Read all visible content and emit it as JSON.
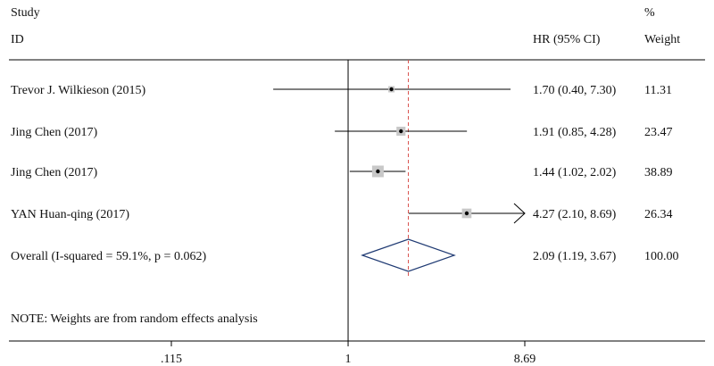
{
  "header": {
    "study_label": "Study",
    "id_label": "ID",
    "hr_label": "HR (95% CI)",
    "pct_label": "%",
    "weight_label": "Weight"
  },
  "note": "NOTE: Weights are from random effects analysis",
  "colors": {
    "line": "#000000",
    "weight_box": "#c8c8c8",
    "overall_diamond": "#1f3a73",
    "overall_ref_line": "#d9534f"
  },
  "chart_data": {
    "type": "forest",
    "scale": "log",
    "xlim": [
      0.115,
      8.69
    ],
    "x_ticks": [
      {
        "value": 0.115,
        "label": ".115"
      },
      {
        "value": 1,
        "label": "1"
      },
      {
        "value": 8.69,
        "label": "8.69"
      }
    ],
    "null_line": 1,
    "studies": [
      {
        "name": "Trevor J. Wilkieson (2015)",
        "hr": 1.7,
        "lo": 0.4,
        "hi": 7.3,
        "hr_ci_text": "1.70 (0.40, 7.30)",
        "weight": 11.31,
        "weight_text": "11.31",
        "arrow_right": false
      },
      {
        "name": "Jing Chen (2017)",
        "hr": 1.91,
        "lo": 0.85,
        "hi": 4.28,
        "hr_ci_text": "1.91 (0.85, 4.28)",
        "weight": 23.47,
        "weight_text": "23.47",
        "arrow_right": false
      },
      {
        "name": "Jing Chen (2017)",
        "hr": 1.44,
        "lo": 1.02,
        "hi": 2.02,
        "hr_ci_text": "1.44 (1.02, 2.02)",
        "weight": 38.89,
        "weight_text": "38.89",
        "arrow_right": false
      },
      {
        "name": "YAN Huan-qing (2017)",
        "hr": 4.27,
        "lo": 2.1,
        "hi": 8.69,
        "hr_ci_text": "4.27 (2.10, 8.69)",
        "weight": 26.34,
        "weight_text": "26.34",
        "arrow_right": true
      }
    ],
    "overall": {
      "label": "Overall  (I-squared = 59.1%, p = 0.062)",
      "hr": 2.09,
      "lo": 1.19,
      "hi": 3.67,
      "hr_ci_text": "2.09 (1.19, 3.67)",
      "weight_text": "100.00"
    }
  }
}
